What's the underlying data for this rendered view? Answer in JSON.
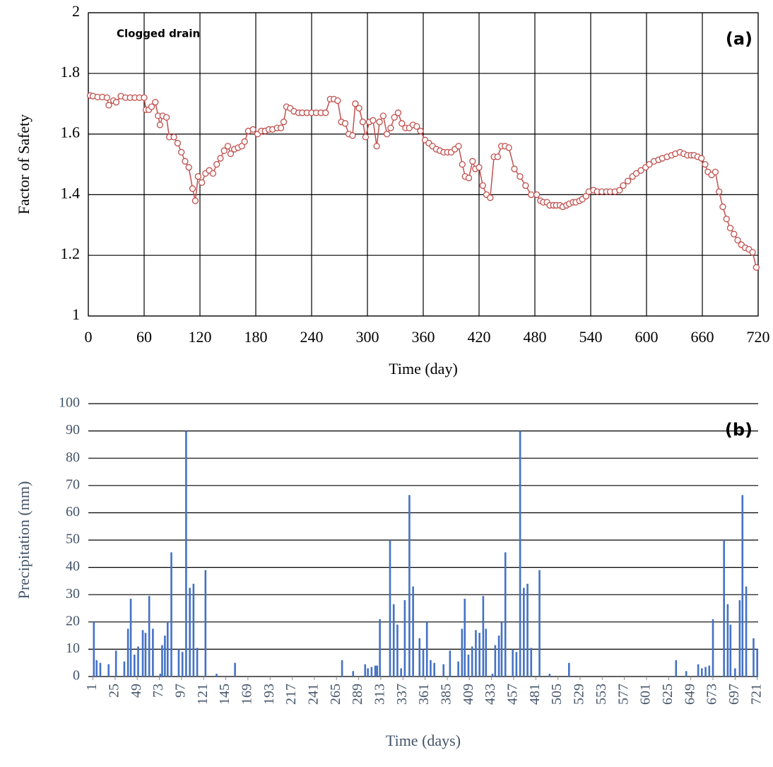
{
  "chart_data": [
    {
      "type": "line",
      "panel_label": "(a)",
      "annotation": "Clogged drain",
      "x_label": "Time (day)",
      "y_label": "Factor of Safety",
      "color": "#c0504d",
      "grid": "both",
      "xlim": [
        0,
        720
      ],
      "xticks": [
        0,
        60,
        120,
        180,
        240,
        300,
        360,
        420,
        480,
        540,
        600,
        660,
        720
      ],
      "ylim": [
        1,
        2
      ],
      "yticks": [
        1,
        1.2,
        1.4,
        1.6,
        1.8,
        2
      ],
      "x": [
        2,
        5,
        10,
        15,
        20,
        22,
        27,
        30,
        35,
        40,
        45,
        50,
        55,
        60,
        62,
        65,
        68,
        72,
        75,
        77,
        80,
        84,
        87,
        92,
        96,
        100,
        104,
        108,
        112,
        115,
        118,
        122,
        126,
        130,
        134,
        138,
        142,
        146,
        150,
        153,
        157,
        161,
        165,
        168,
        172,
        177,
        182,
        186,
        190,
        194,
        198,
        203,
        207,
        210,
        213,
        217,
        221,
        226,
        230,
        235,
        240,
        245,
        250,
        255,
        260,
        264,
        268,
        272,
        276,
        280,
        284,
        287,
        291,
        295,
        298,
        302,
        306,
        310,
        313,
        317,
        321,
        325,
        329,
        333,
        337,
        341,
        345,
        349,
        353,
        357,
        362,
        366,
        370,
        374,
        378,
        382,
        386,
        390,
        394,
        398,
        402,
        405,
        409,
        413,
        416,
        420,
        424,
        428,
        432,
        436,
        440,
        444,
        448,
        452,
        458,
        464,
        470,
        476,
        482,
        486,
        489,
        493,
        496,
        500,
        503,
        507,
        510,
        514,
        517,
        521,
        524,
        528,
        531,
        535,
        538,
        543,
        547,
        552,
        557,
        561,
        566,
        571,
        575,
        580,
        585,
        589,
        594,
        599,
        603,
        608,
        613,
        617,
        622,
        627,
        631,
        636,
        640,
        644,
        648,
        651,
        655,
        659,
        663,
        666,
        670,
        674,
        678,
        682,
        686,
        690,
        694,
        698,
        702,
        706,
        710,
        714,
        718
      ],
      "values": [
        1.727,
        1.725,
        1.722,
        1.722,
        1.72,
        1.695,
        1.71,
        1.705,
        1.725,
        1.72,
        1.72,
        1.72,
        1.72,
        1.72,
        1.68,
        1.68,
        1.69,
        1.705,
        1.66,
        1.63,
        1.66,
        1.655,
        1.59,
        1.59,
        1.57,
        1.54,
        1.51,
        1.49,
        1.42,
        1.38,
        1.46,
        1.44,
        1.47,
        1.48,
        1.47,
        1.5,
        1.52,
        1.545,
        1.56,
        1.535,
        1.55,
        1.555,
        1.56,
        1.575,
        1.61,
        1.615,
        1.6,
        1.61,
        1.61,
        1.615,
        1.615,
        1.62,
        1.62,
        1.64,
        1.69,
        1.685,
        1.675,
        1.67,
        1.67,
        1.67,
        1.67,
        1.67,
        1.67,
        1.67,
        1.715,
        1.715,
        1.71,
        1.64,
        1.635,
        1.6,
        1.595,
        1.7,
        1.685,
        1.64,
        1.59,
        1.64,
        1.645,
        1.56,
        1.64,
        1.66,
        1.6,
        1.62,
        1.655,
        1.67,
        1.635,
        1.62,
        1.62,
        1.63,
        1.625,
        1.61,
        1.58,
        1.57,
        1.56,
        1.55,
        1.545,
        1.54,
        1.54,
        1.54,
        1.55,
        1.56,
        1.5,
        1.46,
        1.455,
        1.51,
        1.485,
        1.49,
        1.43,
        1.4,
        1.39,
        1.525,
        1.525,
        1.56,
        1.56,
        1.555,
        1.485,
        1.46,
        1.43,
        1.4,
        1.4,
        1.38,
        1.375,
        1.375,
        1.365,
        1.365,
        1.365,
        1.365,
        1.36,
        1.365,
        1.37,
        1.375,
        1.375,
        1.38,
        1.385,
        1.395,
        1.41,
        1.415,
        1.41,
        1.41,
        1.41,
        1.41,
        1.41,
        1.415,
        1.43,
        1.445,
        1.46,
        1.47,
        1.48,
        1.49,
        1.5,
        1.51,
        1.515,
        1.52,
        1.525,
        1.53,
        1.535,
        1.54,
        1.535,
        1.53,
        1.53,
        1.53,
        1.525,
        1.52,
        1.5,
        1.475,
        1.465,
        1.475,
        1.41,
        1.36,
        1.32,
        1.29,
        1.27,
        1.25,
        1.235,
        1.225,
        1.22,
        1.21,
        1.16
      ]
    },
    {
      "type": "bar",
      "panel_label": "(b)",
      "x_label": "Time (days)",
      "y_label": "Precipitation (mm)",
      "color": "#4472c4",
      "grid": "y",
      "xlim": [
        -4,
        722
      ],
      "xticks": [
        1,
        25,
        49,
        73,
        97,
        121,
        145,
        169,
        193,
        217,
        241,
        265,
        289,
        313,
        337,
        361,
        385,
        409,
        433,
        457,
        481,
        505,
        529,
        553,
        577,
        601,
        625,
        649,
        673,
        697,
        721
      ],
      "ylim": [
        0,
        100
      ],
      "yticks": [
        0,
        10,
        20,
        30,
        40,
        50,
        60,
        70,
        80,
        90,
        100
      ],
      "x": [
        2,
        5,
        9,
        18,
        26,
        35,
        39,
        42,
        46,
        50,
        55,
        58,
        62,
        66,
        74,
        76,
        79,
        82,
        86,
        94,
        98,
        102,
        106,
        110,
        114,
        123,
        135,
        155,
        271,
        283,
        296,
        299,
        303,
        307,
        309,
        312,
        323,
        327,
        331,
        335,
        339,
        344,
        348,
        355,
        359,
        363,
        367,
        371,
        381,
        388,
        397,
        401,
        404,
        408,
        412,
        416,
        420,
        424,
        427,
        434,
        437,
        441,
        444,
        448,
        456,
        460,
        464,
        468,
        472,
        476,
        485,
        496,
        517,
        633,
        644,
        657,
        661,
        665,
        669,
        673,
        685,
        689,
        692,
        697,
        702,
        705,
        709,
        717,
        721
      ],
      "values": [
        20,
        6,
        5,
        4.5,
        9.5,
        5.5,
        17.5,
        28.5,
        8,
        11,
        17,
        16,
        29.5,
        17.5,
        1,
        11.5,
        15,
        20,
        45.5,
        10,
        9,
        90,
        32.5,
        34,
        10.5,
        39,
        1,
        5,
        6,
        2,
        4.5,
        3,
        3.5,
        4,
        4,
        21,
        50,
        26.5,
        19,
        3,
        28,
        66.5,
        33,
        14,
        10,
        20,
        6,
        5,
        4.5,
        9.5,
        5.5,
        17.5,
        28.5,
        8,
        11,
        17,
        16,
        29.5,
        17.5,
        1,
        11.5,
        15,
        20,
        45.5,
        10,
        9,
        90,
        32.5,
        34,
        10.5,
        39,
        1,
        5,
        6,
        2,
        4.5,
        3,
        3.5,
        4,
        21,
        50,
        26.5,
        19,
        3,
        28,
        66.5,
        33,
        14,
        10
      ]
    }
  ]
}
